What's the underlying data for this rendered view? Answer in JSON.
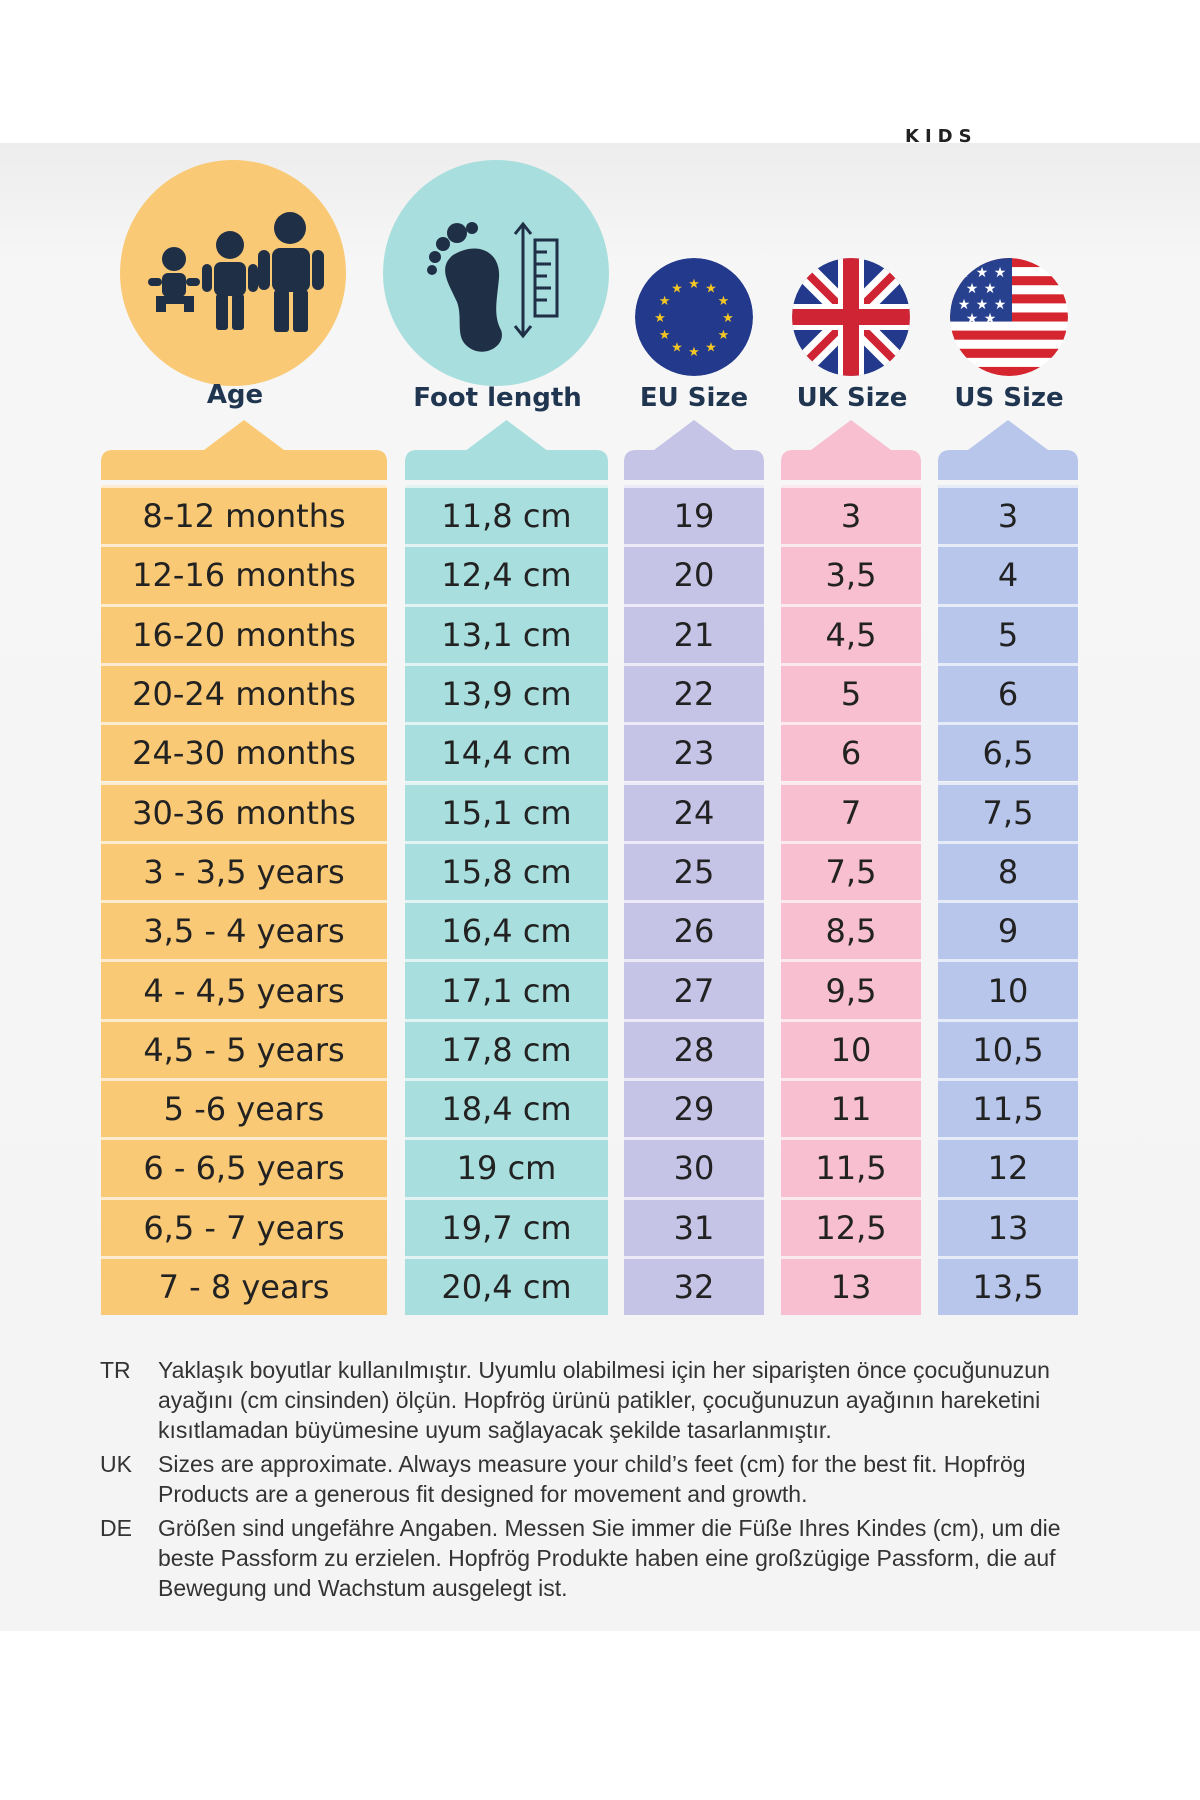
{
  "brand": "KIDS",
  "headers": {
    "age": "Age",
    "foot": "Foot length",
    "eu": "EU Size",
    "uk": "UK Size",
    "us": "US Size"
  },
  "colors": {
    "age": "#f9c975",
    "foot": "#a8dedd",
    "eu": "#c5c3e6",
    "uk": "#f7bfd0",
    "us": "#b7c6ea",
    "heading_text": "#1f3550",
    "eu_flag": "#233a8c",
    "uk_flag_red": "#cf2434",
    "us_flag_red": "#d5262f"
  },
  "icons": {
    "age": "children-icon",
    "foot": "foot-measure-icon",
    "eu": "eu-flag-icon",
    "uk": "uk-flag-icon",
    "us": "us-flag-icon"
  },
  "rows": [
    {
      "age": "8-12 months",
      "foot": "11,8 cm",
      "eu": "19",
      "uk": "3",
      "us": "3"
    },
    {
      "age": "12-16 months",
      "foot": "12,4 cm",
      "eu": "20",
      "uk": "3,5",
      "us": "4"
    },
    {
      "age": "16-20 months",
      "foot": "13,1 cm",
      "eu": "21",
      "uk": "4,5",
      "us": "5"
    },
    {
      "age": "20-24 months",
      "foot": "13,9 cm",
      "eu": "22",
      "uk": "5",
      "us": "6"
    },
    {
      "age": "24-30 months",
      "foot": "14,4 cm",
      "eu": "23",
      "uk": "6",
      "us": "6,5"
    },
    {
      "age": "30-36 months",
      "foot": "15,1 cm",
      "eu": "24",
      "uk": "7",
      "us": "7,5"
    },
    {
      "age": "3 - 3,5 years",
      "foot": "15,8 cm",
      "eu": "25",
      "uk": "7,5",
      "us": "8"
    },
    {
      "age": "3,5 - 4 years",
      "foot": "16,4 cm",
      "eu": "26",
      "uk": "8,5",
      "us": "9"
    },
    {
      "age": "4 - 4,5 years",
      "foot": "17,1 cm",
      "eu": "27",
      "uk": "9,5",
      "us": "10"
    },
    {
      "age": "4,5 - 5 years",
      "foot": "17,8 cm",
      "eu": "28",
      "uk": "10",
      "us": "10,5"
    },
    {
      "age": "5 -6 years",
      "foot": "18,4 cm",
      "eu": "29",
      "uk": "11",
      "us": "11,5"
    },
    {
      "age": "6 - 6,5 years",
      "foot": "19 cm",
      "eu": "30",
      "uk": "11,5",
      "us": "12"
    },
    {
      "age": "6,5 - 7 years",
      "foot": "19,7 cm",
      "eu": "31",
      "uk": "12,5",
      "us": "13"
    },
    {
      "age": "7 - 8 years",
      "foot": "20,4 cm",
      "eu": "32",
      "uk": "13",
      "us": "13,5"
    }
  ],
  "notes": [
    {
      "code": "TR",
      "text": "Yaklaşık boyutlar kullanılmıştır. Uyumlu olabilmesi için her siparişten önce çocuğunuzun ayağını (cm cinsinden) ölçün. Hopfrög ürünü patikler, çocuğunuzun ayağının hareketini kısıtlamadan büyümesine uyum sağlayacak şekilde tasarlanmıştır."
    },
    {
      "code": "UK",
      "text": "Sizes are approximate. Always measure your child’s feet (cm) for the best fit. Hopfrög Products are a generous fit designed for movement and growth."
    },
    {
      "code": "DE",
      "text": "Größen sind ungefähre Angaben. Messen Sie immer die Füße Ihres Kindes (cm), um die beste Passform zu erzielen. Hopfrög Produkte haben eine großzügige Passform, die auf Bewegung und Wachstum ausgelegt ist."
    }
  ]
}
